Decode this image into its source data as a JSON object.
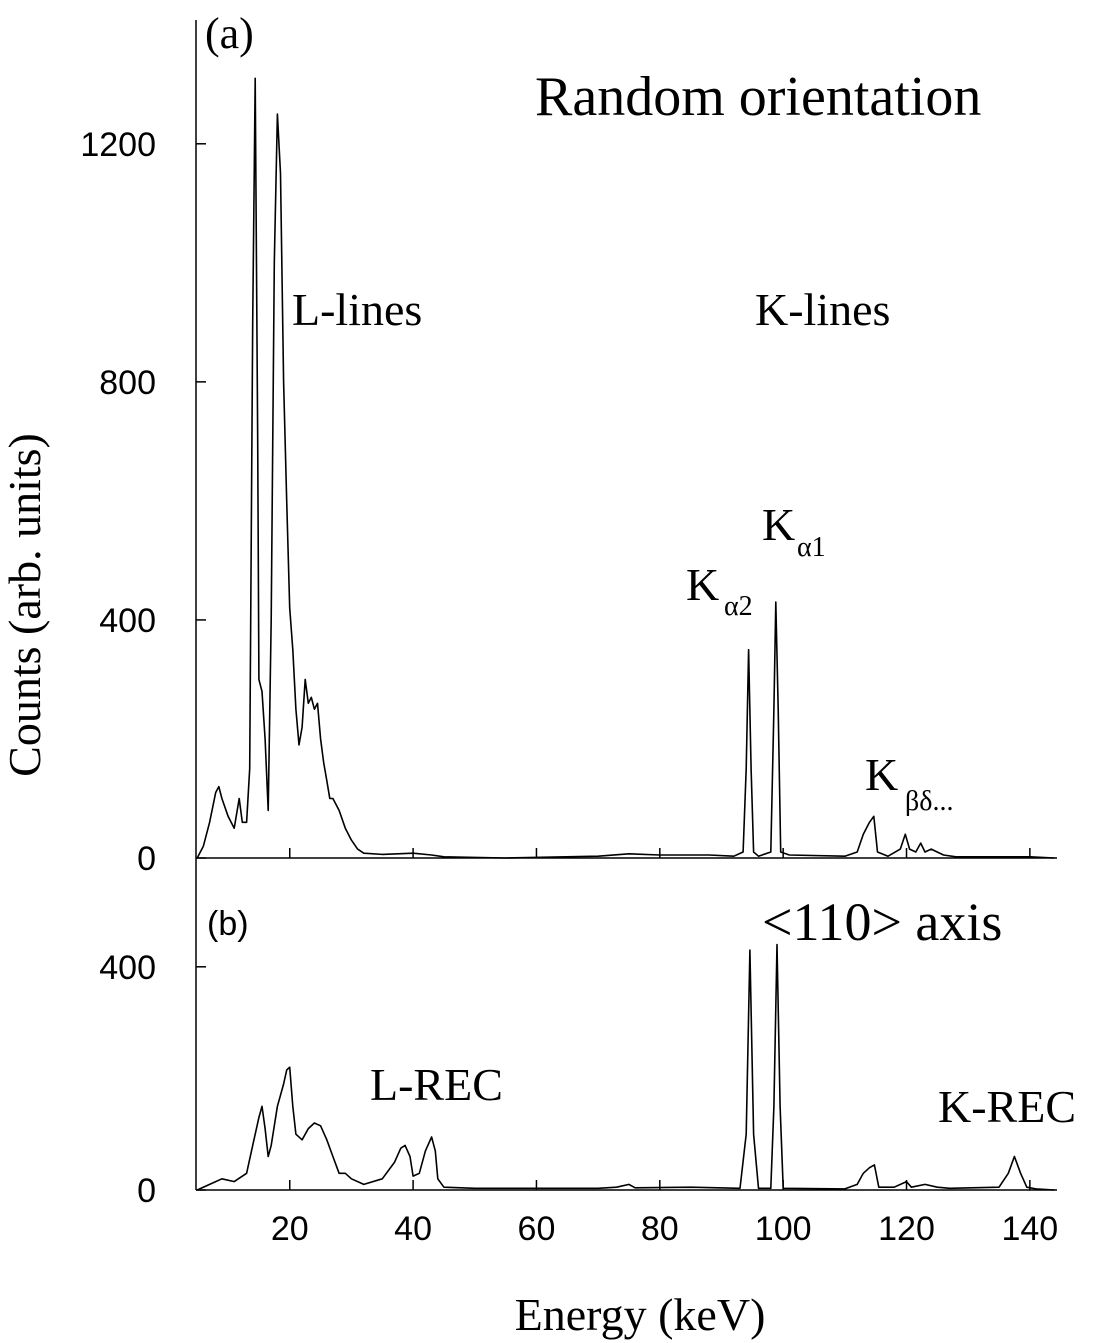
{
  "chart_data": [
    {
      "type": "line",
      "panel": "(a)",
      "title": "Random orientation",
      "ylabel": "Counts (arb. units)",
      "color": "#000000",
      "ylim": [
        0,
        1408
      ],
      "yticks": [
        0,
        400,
        800,
        1200
      ],
      "annotations": [
        {
          "text": "L-lines"
        },
        {
          "text": "K-lines"
        },
        {
          "text": "K",
          "sub": "α2"
        },
        {
          "text": "K",
          "sub": "α1"
        },
        {
          "text": "K",
          "sub": "βδ..."
        }
      ],
      "x": [
        5,
        6,
        7,
        8,
        8.5,
        9,
        10,
        11,
        11.8,
        12.3,
        13,
        13.5,
        14,
        14.4,
        14.8,
        15,
        15.5,
        16,
        16.5,
        17,
        17.5,
        18,
        18.5,
        19,
        19.5,
        20,
        20.5,
        21,
        21.5,
        22,
        22.5,
        23,
        23.5,
        24,
        24.5,
        25,
        25.5,
        26,
        26.5,
        27,
        28,
        29,
        30,
        31,
        32,
        35,
        40,
        43,
        45,
        55,
        70,
        75,
        80,
        88,
        92,
        93.5,
        94,
        94.4,
        94.8,
        95.2,
        96,
        98,
        98.5,
        98.8,
        99.2,
        99.6,
        101,
        110,
        112,
        113,
        114,
        114.7,
        115.3,
        117,
        119,
        119.8,
        120.5,
        121.5,
        122.3,
        123,
        124,
        126,
        128,
        140,
        144
      ],
      "values": [
        0,
        20,
        60,
        110,
        120,
        100,
        70,
        50,
        100,
        60,
        60,
        150,
        900,
        1310,
        700,
        300,
        280,
        200,
        80,
        400,
        1000,
        1250,
        1150,
        800,
        600,
        420,
        350,
        250,
        190,
        220,
        300,
        260,
        270,
        250,
        260,
        200,
        160,
        130,
        100,
        100,
        80,
        50,
        30,
        15,
        8,
        6,
        8,
        5,
        2,
        0,
        3,
        7,
        5,
        5,
        3,
        10,
        150,
        350,
        150,
        10,
        3,
        10,
        250,
        430,
        250,
        10,
        5,
        3,
        10,
        40,
        60,
        70,
        10,
        3,
        15,
        40,
        15,
        10,
        25,
        10,
        15,
        5,
        2,
        2,
        0
      ]
    },
    {
      "type": "line",
      "panel": "(b)",
      "title": "<110> axis",
      "xlabel": "Energy (keV)",
      "color": "#000000",
      "xlim": [
        4.8,
        144.4
      ],
      "xticks": [
        20,
        40,
        60,
        80,
        100,
        120,
        140
      ],
      "ylim": [
        0,
        595
      ],
      "yticks": [
        0,
        400
      ],
      "annotations": [
        {
          "text": "L-REC"
        },
        {
          "text": "K-REC"
        }
      ],
      "x": [
        5,
        7,
        9,
        11,
        13,
        14,
        15,
        15.5,
        16,
        16.5,
        17,
        18,
        19,
        19.5,
        20,
        20.5,
        21,
        22,
        23,
        24,
        25,
        26,
        27,
        28,
        29,
        30,
        32,
        35,
        37,
        38,
        38.7,
        39.5,
        40,
        41,
        42,
        43,
        43.6,
        44,
        45,
        50,
        70,
        73,
        75,
        76,
        85,
        93,
        94,
        94.6,
        95.2,
        96,
        98,
        98.5,
        99,
        99.5,
        100,
        110,
        112,
        113,
        114,
        114.8,
        115.5,
        118,
        120,
        120.8,
        123,
        125,
        127,
        135,
        136.5,
        137.5,
        138.5,
        139.5,
        141,
        144
      ],
      "values": [
        0,
        10,
        20,
        15,
        30,
        80,
        130,
        150,
        110,
        60,
        80,
        150,
        190,
        215,
        220,
        150,
        100,
        90,
        110,
        120,
        115,
        90,
        60,
        30,
        30,
        20,
        10,
        20,
        50,
        75,
        80,
        60,
        25,
        30,
        70,
        95,
        70,
        20,
        5,
        3,
        3,
        5,
        10,
        4,
        5,
        3,
        100,
        430,
        100,
        3,
        3,
        150,
        440,
        150,
        3,
        2,
        10,
        30,
        40,
        45,
        5,
        5,
        15,
        5,
        10,
        5,
        3,
        5,
        30,
        60,
        30,
        5,
        2,
        0
      ]
    }
  ]
}
